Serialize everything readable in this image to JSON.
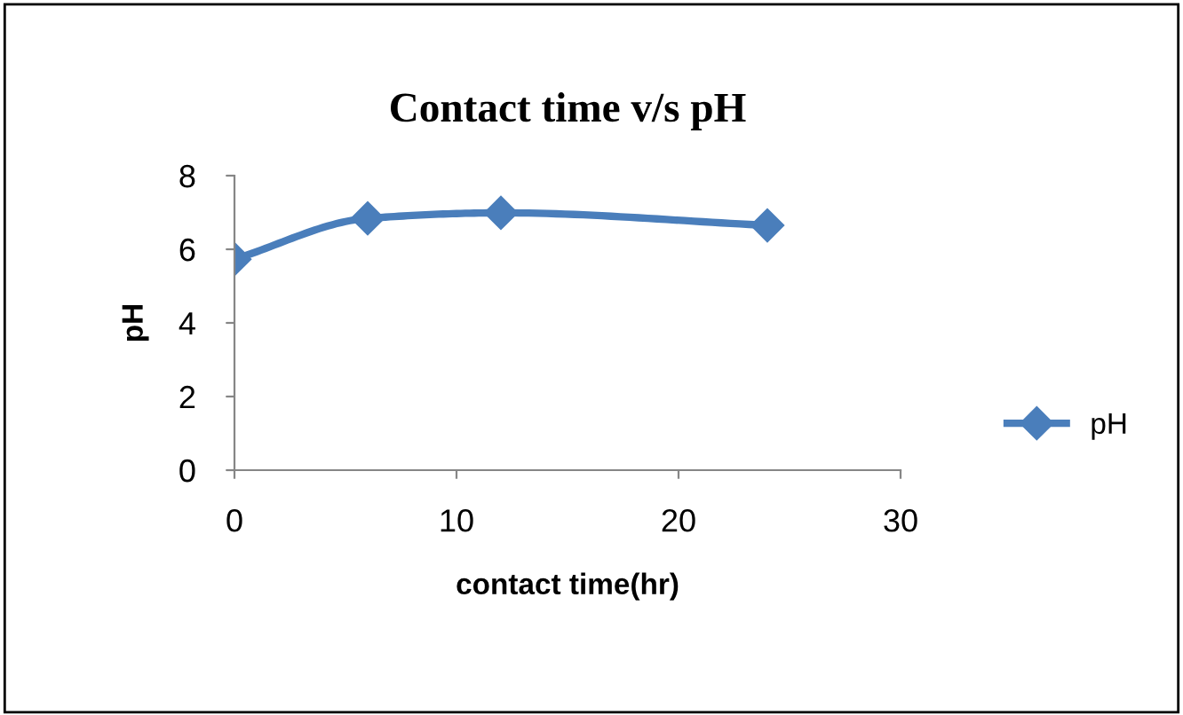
{
  "chart_data": {
    "type": "line",
    "title": "Contact time v/s pH",
    "xlabel": "contact time(hr)",
    "ylabel": "pH",
    "x": [
      0,
      6,
      12,
      24
    ],
    "series": [
      {
        "name": "pH",
        "color": "#4a7ebb",
        "values": [
          5.73,
          6.84,
          6.99,
          6.65
        ]
      }
    ],
    "xlim": [
      0,
      30
    ],
    "xticks": [
      0,
      10,
      20,
      30
    ],
    "ylim": [
      0,
      8
    ],
    "yticks": [
      0,
      2,
      4,
      6,
      8
    ],
    "grid": false,
    "legend": "right",
    "marker": "diamond",
    "line_style": "solid"
  }
}
